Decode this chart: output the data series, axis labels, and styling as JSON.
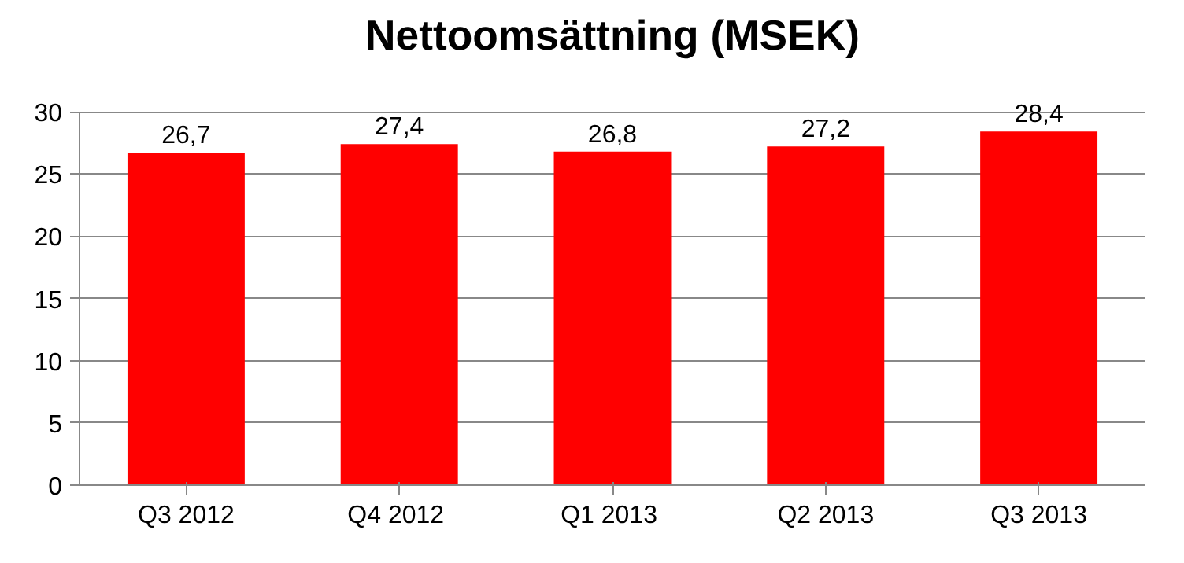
{
  "chart_data": {
    "type": "bar",
    "title": "Nettoomsättning (MSEK)",
    "categories": [
      "Q3 2012",
      "Q4  2012",
      "Q1  2013",
      "Q2 2013",
      "Q3 2013"
    ],
    "values": [
      26.7,
      27.4,
      26.8,
      27.2,
      28.4
    ],
    "value_labels": [
      "26,7",
      "27,4",
      "26,8",
      "27,2",
      "28,4"
    ],
    "color": "#ff0000",
    "ylim": [
      0,
      30
    ],
    "yticks": [
      0,
      5,
      10,
      15,
      20,
      25,
      30
    ],
    "grid": "y"
  }
}
